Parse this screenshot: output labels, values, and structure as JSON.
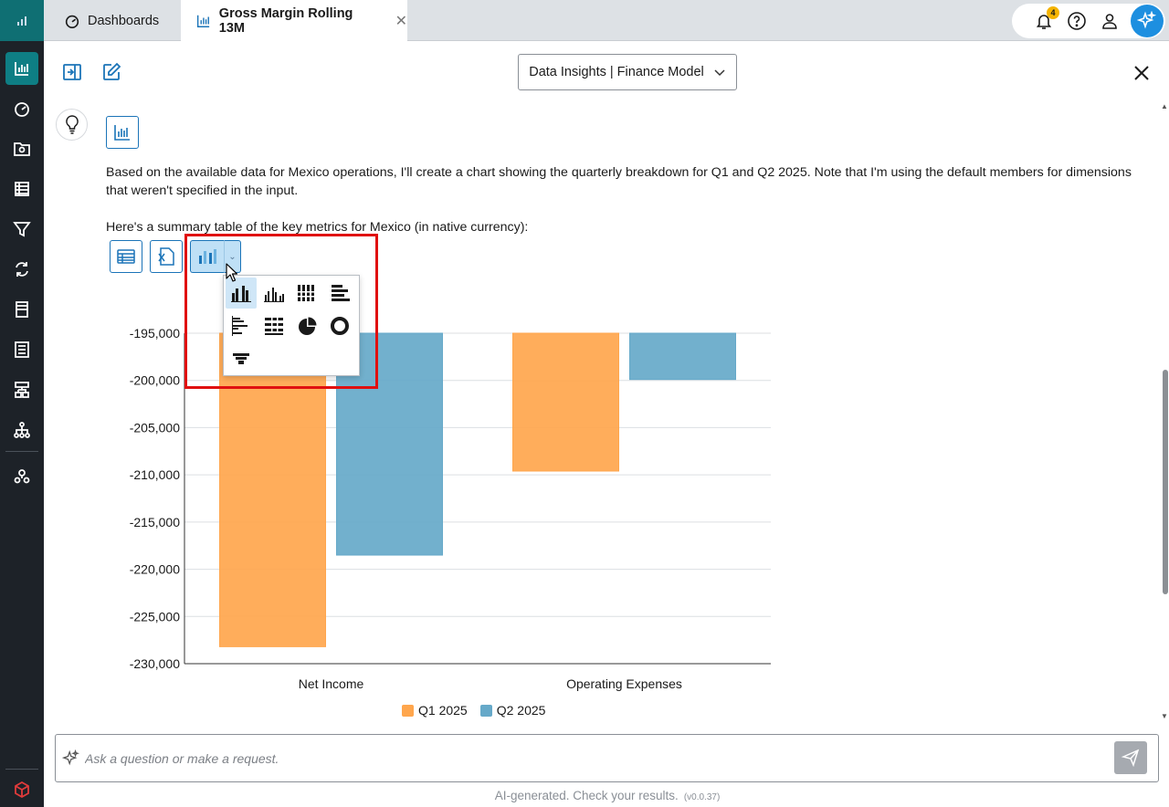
{
  "tabs": [
    {
      "label": "Dashboards",
      "icon": "gauge-icon"
    },
    {
      "label": "Gross Margin Rolling 13M",
      "icon": "bar-chart-icon"
    }
  ],
  "notifications": {
    "count": "4"
  },
  "header": {
    "model_select": "Data Insights | Finance Model"
  },
  "message": {
    "paragraph1": "Based on the available data for Mexico operations, I'll create a chart showing the quarterly breakdown for Q1 and Q2 2025. Note that I'm using the default members for dimensions that weren't specified in the input.",
    "paragraph2": "Here's a summary table of the key metrics for Mexico (in native currency):"
  },
  "chart_type_menu": {
    "options": [
      "clustered-column",
      "column-variant",
      "stacked-column",
      "clustered-bar",
      "bar-variant",
      "stacked-bar",
      "pie",
      "donut",
      "funnel"
    ],
    "selected": "clustered-column"
  },
  "chart_data": {
    "type": "bar",
    "categories": [
      "Net Income",
      "Operating Expenses"
    ],
    "series": [
      {
        "name": "Q1 2025",
        "color": "#ffa64d",
        "values": [
          -228200,
          -209600
        ]
      },
      {
        "name": "Q2 2025",
        "color": "#66a9c9",
        "values": [
          -218500,
          -199900
        ]
      }
    ],
    "ylim": [
      -230000,
      -195000
    ],
    "yticks": [
      -195000,
      -200000,
      -205000,
      -210000,
      -215000,
      -220000,
      -225000,
      -230000
    ],
    "ytick_labels": [
      "-195,000",
      "-200,000",
      "-205,000",
      "-210,000",
      "-215,000",
      "-220,000",
      "-225,000",
      "-230,000"
    ],
    "grid": true,
    "legend": "bottom"
  },
  "input": {
    "placeholder": "Ask a question or make a request."
  },
  "footer": {
    "text": "AI-generated. Check your results.",
    "version": "(v0.0.37)"
  }
}
